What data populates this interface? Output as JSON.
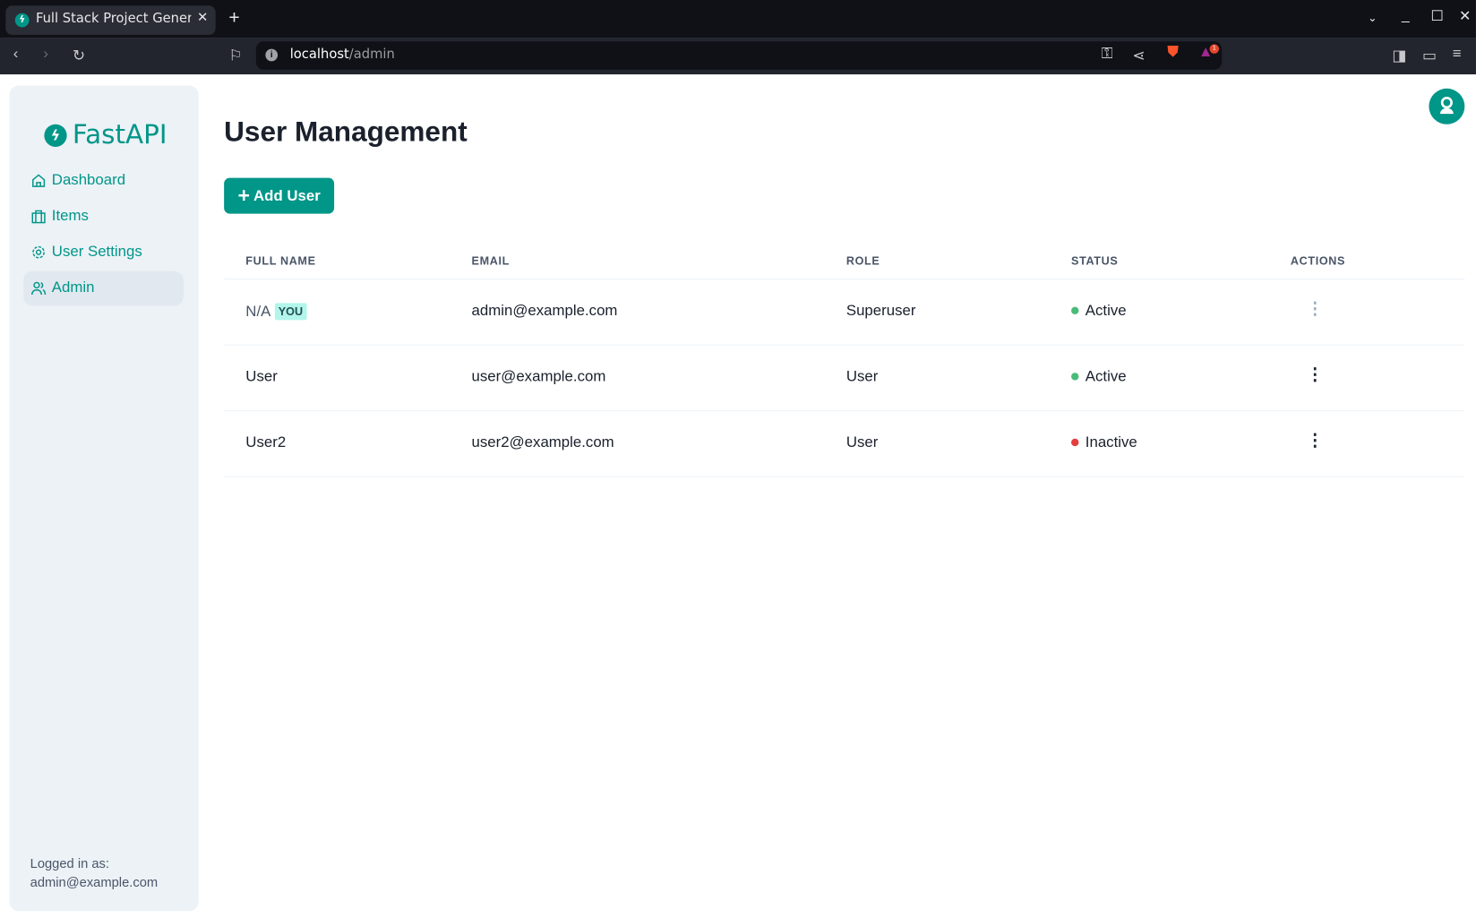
{
  "browser": {
    "tab_title": "Full Stack Project Generator",
    "url_host": "localhost",
    "url_path": "/admin",
    "notification_count": "1"
  },
  "sidebar": {
    "logo": "FastAPI",
    "items": [
      {
        "label": "Dashboard",
        "icon": "home-icon"
      },
      {
        "label": "Items",
        "icon": "briefcase-icon"
      },
      {
        "label": "User Settings",
        "icon": "gear-icon"
      },
      {
        "label": "Admin",
        "icon": "users-icon",
        "active": true
      }
    ],
    "logged_in_label": "Logged in as:",
    "logged_in_email": "admin@example.com"
  },
  "main": {
    "title": "User Management",
    "add_button": "Add User",
    "table": {
      "columns": [
        "FULL NAME",
        "EMAIL",
        "ROLE",
        "STATUS",
        "ACTIONS"
      ],
      "rows": [
        {
          "name": "N/A",
          "badge": "YOU",
          "email": "admin@example.com",
          "role": "Superuser",
          "status": "Active"
        },
        {
          "name": "User",
          "email": "user@example.com",
          "role": "User",
          "status": "Active"
        },
        {
          "name": "User2",
          "email": "user2@example.com",
          "role": "User",
          "status": "Inactive"
        }
      ]
    }
  },
  "colors": {
    "brand": "#009688",
    "active": "#48bb78",
    "inactive": "#e53e3e"
  }
}
